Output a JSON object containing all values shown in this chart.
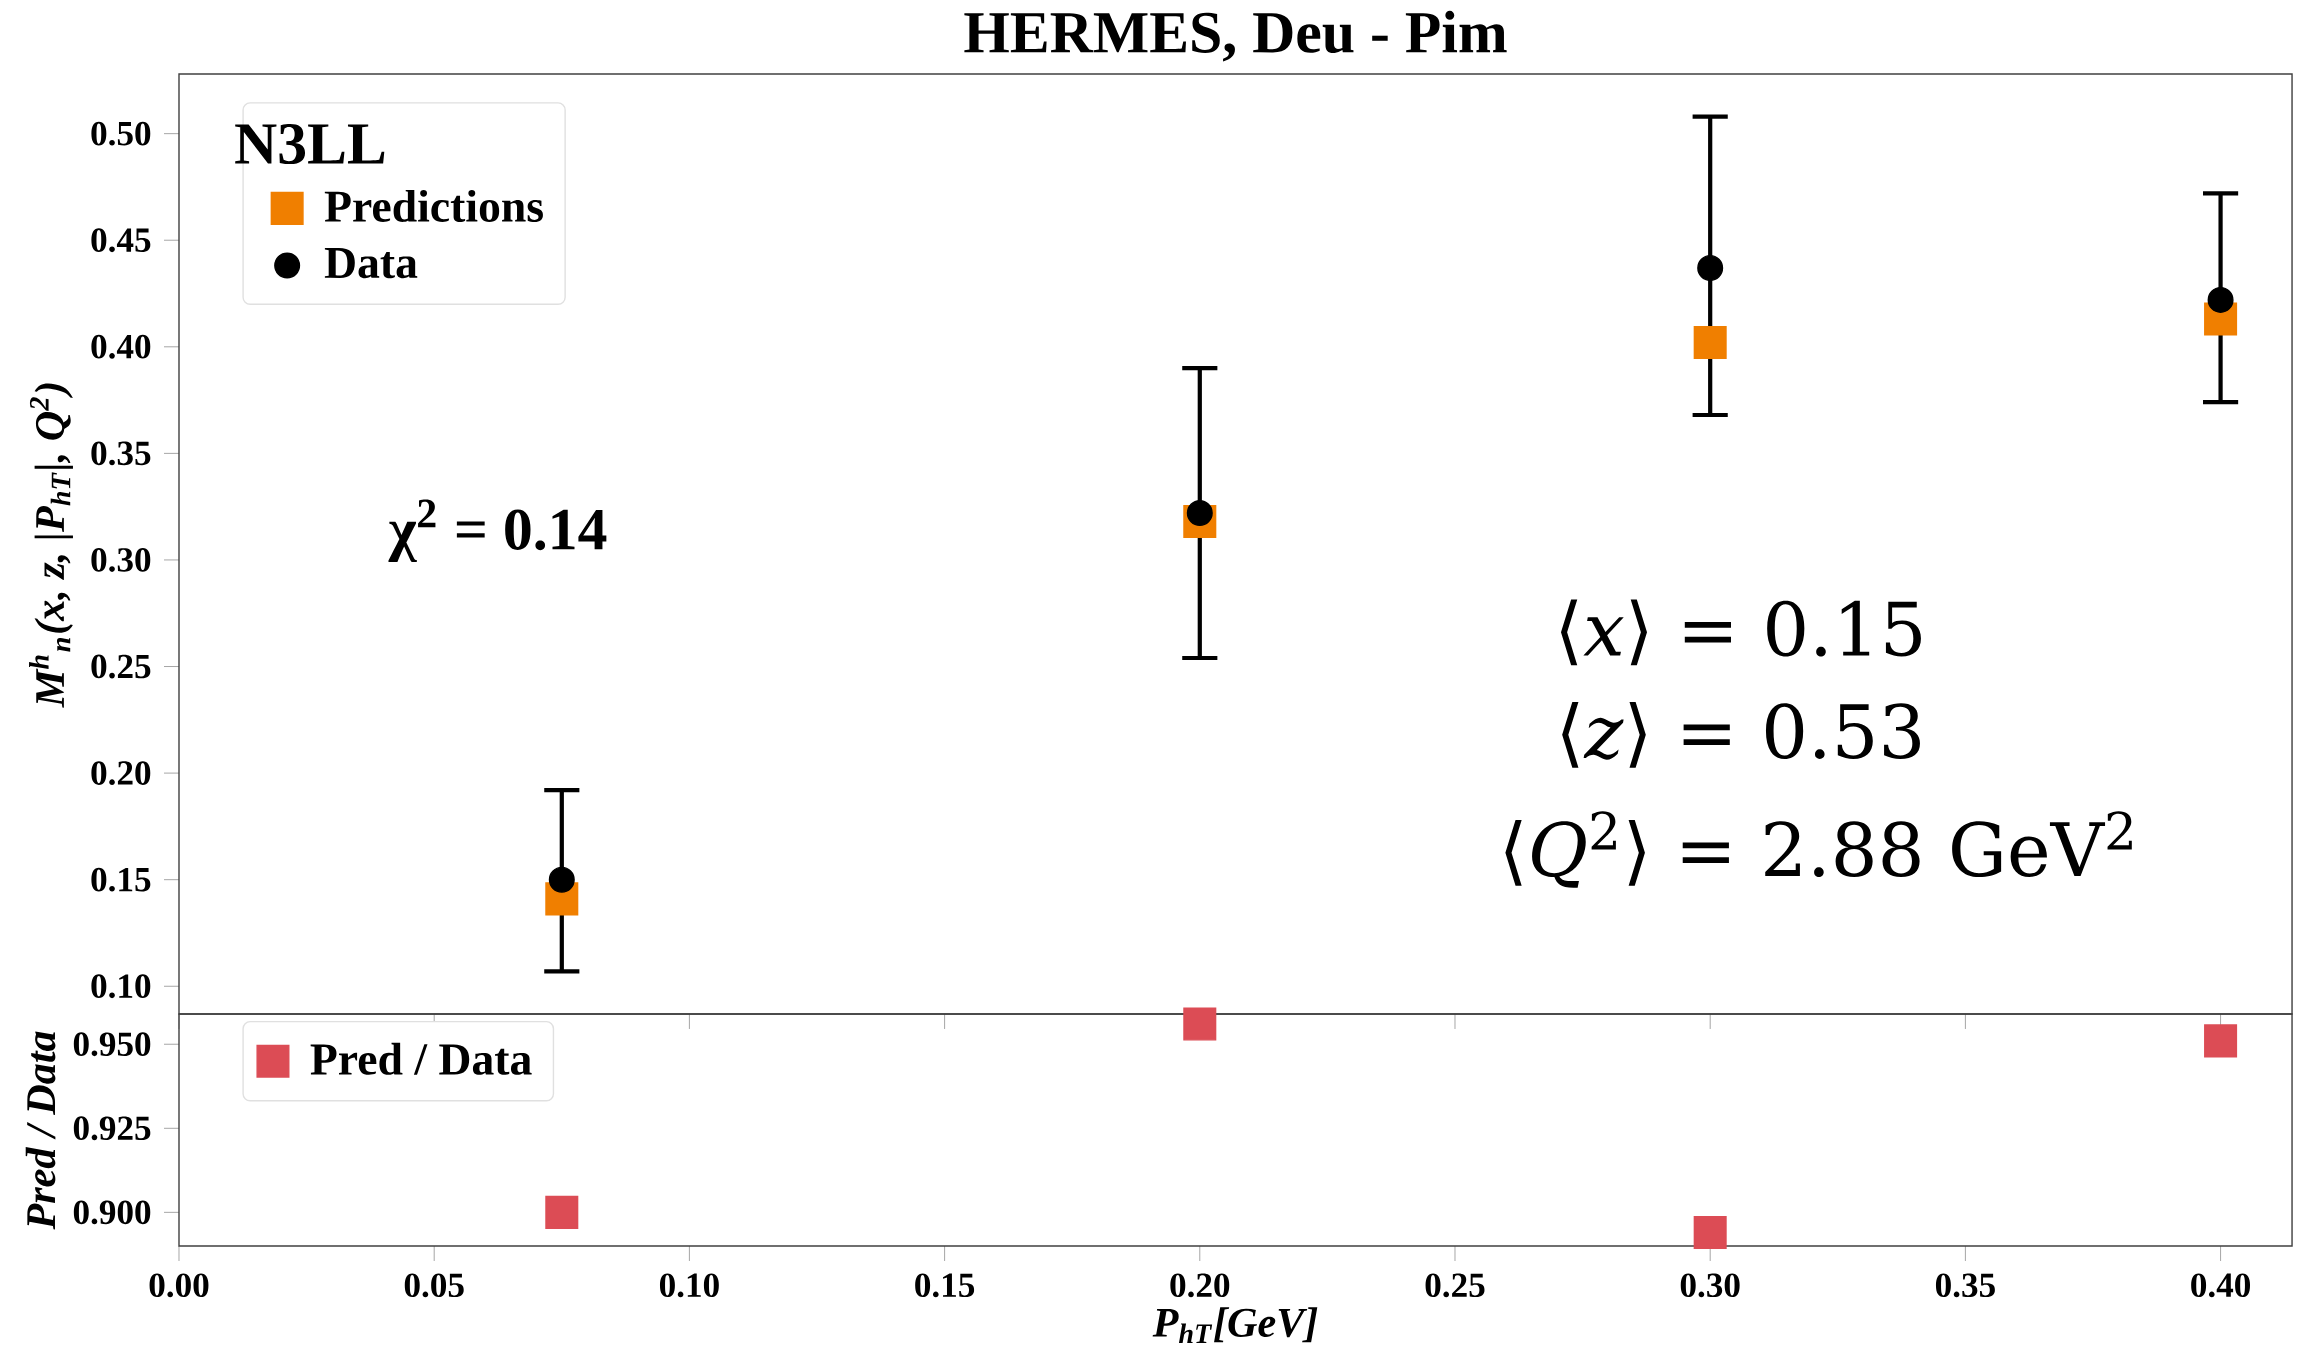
{
  "chart_data": [
    {
      "type": "scatter",
      "title": "HERMES, Deu - Pim",
      "ylabel": "M$^{h}$$_{n}$(x, z, |P$_{hT}$|, Q$^{2}$)",
      "legend_title": "N3LL",
      "legend": "top left",
      "x": [
        0.075,
        0.2,
        0.3,
        0.4
      ],
      "series": [
        {
          "name": "Predictions",
          "color": "#f07f00",
          "marker": "square",
          "values": [
            0.141,
            0.318,
            0.402,
            0.413
          ]
        },
        {
          "name": "Data",
          "color": "#000000",
          "marker": "circle",
          "values": [
            0.15,
            0.322,
            0.437,
            0.422
          ],
          "errors": [
            [
              0.107,
              0.192
            ],
            [
              0.254,
              0.39
            ],
            [
              0.368,
              0.508
            ],
            [
              0.374,
              0.472
            ]
          ]
        }
      ],
      "xlim": [
        0.0,
        0.414
      ],
      "ylim": [
        0.087,
        0.528
      ],
      "xticks": [
        {
          "value": 0,
          "label": null
        },
        {
          "value": 0.05,
          "label": null
        },
        {
          "value": 0.1,
          "label": null
        },
        {
          "value": 0.15,
          "label": null
        },
        {
          "value": 0.2,
          "label": null
        },
        {
          "value": 0.25,
          "label": null
        },
        {
          "value": 0.3,
          "label": null
        },
        {
          "value": 0.35,
          "label": null
        },
        {
          "value": 0.4,
          "label": null
        }
      ],
      "yticks": [
        {
          "value": 0.1,
          "label": "0.10"
        },
        0.15,
        {
          "value": 0.2,
          "label": "0.20"
        },
        0.25,
        {
          "value": 0.3,
          "label": "0.30"
        },
        0.35,
        {
          "value": 0.4,
          "label": "0.40"
        },
        0.45,
        {
          "value": 0.5,
          "label": "0.50"
        }
      ],
      "tick_labels": "y",
      "annotations": [
        "χ$^{2}$ = 0.14",
        "⟨*x*⟩ = 0.15",
        "⟨*z*⟩ = 0.53",
        "⟨*Q*$^{2}$⟩ = 2.88 GeV$^{2}$"
      ]
    },
    {
      "type": "scatter",
      "xlabel": "P$_{hT}$[GeV]",
      "ylabel": "Pred / Data",
      "legend": "top left",
      "x": [
        0.075,
        0.2,
        0.3,
        0.4
      ],
      "series": [
        {
          "name": "Pred / Data",
          "color": "#dc4c55",
          "marker": "square",
          "values": [
            0.9,
            0.956,
            0.894,
            0.951
          ]
        }
      ],
      "xlim": [
        0.0,
        0.414
      ],
      "ylim": [
        0.89,
        0.959
      ],
      "xticks": [
        {
          "value": 0,
          "label": "0.00"
        },
        0.05,
        {
          "value": 0.1,
          "label": "0.10"
        },
        0.15,
        {
          "value": 0.2,
          "label": "0.20"
        },
        0.25,
        {
          "value": 0.3,
          "label": "0.30"
        },
        0.35,
        {
          "value": 0.4,
          "label": "0.40"
        }
      ],
      "yticks": [
        {
          "value": 0.9,
          "label": "0.900"
        },
        0.925,
        {
          "value": 0.95,
          "label": "0.950"
        }
      ]
    }
  ]
}
